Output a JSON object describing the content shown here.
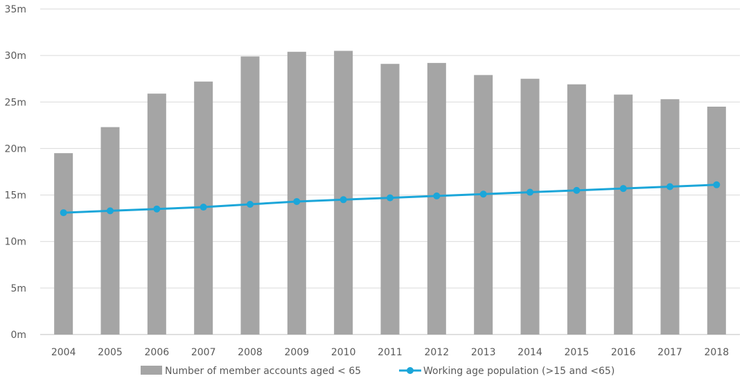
{
  "chart_data": {
    "type": "bar",
    "categories": [
      "2004",
      "2005",
      "2006",
      "2007",
      "2008",
      "2009",
      "2010",
      "2011",
      "2012",
      "2013",
      "2014",
      "2015",
      "2016",
      "2017",
      "2018"
    ],
    "series": [
      {
        "name": "Number of member accounts aged < 65",
        "type": "bar",
        "color": "#a5a5a5",
        "values": [
          19.5,
          22.3,
          25.9,
          27.2,
          29.9,
          30.4,
          30.5,
          29.1,
          29.2,
          27.9,
          27.5,
          26.9,
          25.8,
          25.3,
          24.5
        ]
      },
      {
        "name": "Working age population (>15 and <65)",
        "type": "line",
        "color": "#1ba6d9",
        "values": [
          13.1,
          13.3,
          13.5,
          13.7,
          14.0,
          14.3,
          14.5,
          14.7,
          14.9,
          15.1,
          15.3,
          15.5,
          15.7,
          15.9,
          16.1
        ]
      }
    ],
    "y_ticks": [
      "0m",
      "5m",
      "10m",
      "15m",
      "20m",
      "25m",
      "30m",
      "35m"
    ],
    "ylim": [
      0,
      35
    ],
    "grid": true,
    "legend_position": "bottom"
  }
}
